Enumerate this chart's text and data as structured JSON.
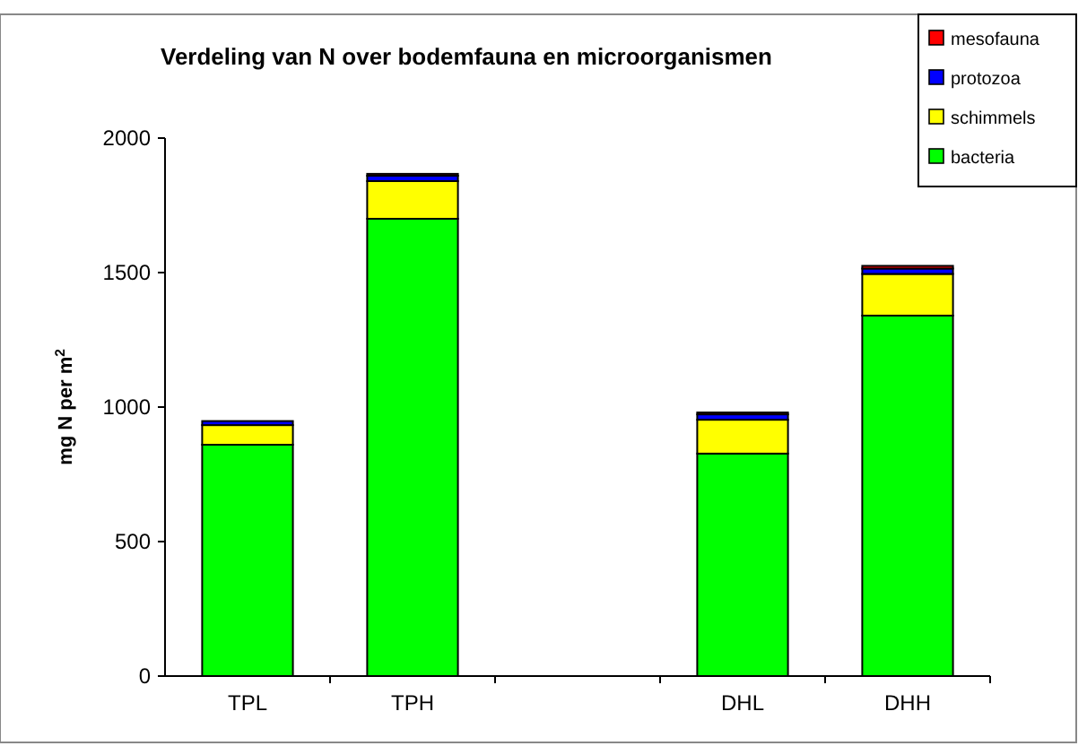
{
  "chart_data": {
    "type": "bar",
    "stacked": true,
    "title": "Verdeling van N over bodemfauna en microorganismen",
    "ylabel": "mg N per m$^{2}$",
    "categories": [
      "TPL",
      "TPH",
      null,
      "DHL",
      "DHH"
    ],
    "series": [
      {
        "name": "bacteria",
        "color": "#00ff00",
        "values": [
          860,
          1700,
          null,
          827,
          1340
        ]
      },
      {
        "name": "schimmels",
        "color": "#ffff00",
        "values": [
          73,
          140,
          null,
          126,
          155
        ]
      },
      {
        "name": "protozoa",
        "color": "#0000ff",
        "values": [
          15,
          20,
          null,
          20,
          20
        ]
      },
      {
        "name": "mesofauna",
        "color": "#ff0000",
        "values": [
          null,
          7,
          null,
          7,
          10
        ]
      }
    ],
    "ylim": [
      0,
      2000
    ],
    "yticks": [
      0,
      500,
      1000,
      1500,
      2000
    ],
    "legend": "top right"
  }
}
